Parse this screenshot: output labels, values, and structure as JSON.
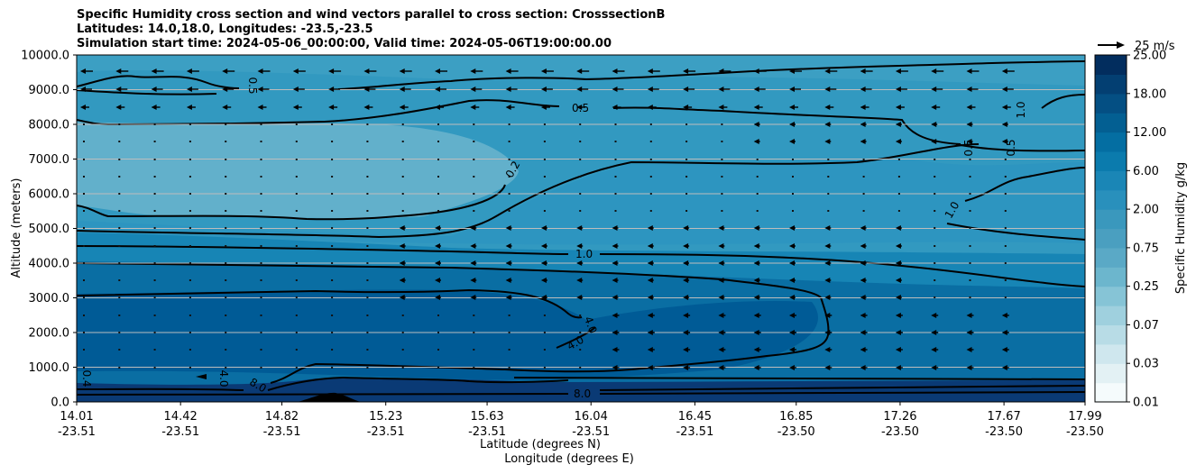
{
  "chart_data": {
    "type": "contourf",
    "title_lines": [
      "Specific Humidity cross section and wind vectors parallel to cross section: CrosssectionB",
      "Latitudes: 14.0,18.0, Longitudes: -23.5,-23.5",
      "Simulation start time: 2024-05-06_00:00:00, Valid time: 2024-05-06T19:00:00.00"
    ],
    "ylabel": "Altitude (meters)",
    "xlabel_lat": "Latitude (degrees N)",
    "xlabel_lon": "Longitude (degrees E)",
    "ylim": [
      0,
      10000
    ],
    "yticks": [
      "0.0",
      "1000.0",
      "2000.0",
      "3000.0",
      "4000.0",
      "5000.0",
      "6000.0",
      "7000.0",
      "8000.0",
      "9000.0",
      "10000.0"
    ],
    "xticks_lat": [
      "14.01",
      "14.42",
      "14.82",
      "15.23",
      "15.63",
      "16.04",
      "16.45",
      "16.85",
      "17.26",
      "17.67",
      "17.99"
    ],
    "xticks_lon": [
      "-23.51",
      "-23.51",
      "-23.51",
      "-23.51",
      "-23.51",
      "-23.51",
      "-23.51",
      "-23.50",
      "-23.50",
      "-23.50",
      "-23.50"
    ],
    "colorbar": {
      "label": "Specific Humidity g/kg",
      "ticks": [
        "0.01",
        "0.03",
        "0.07",
        "0.25",
        "0.75",
        "2.00",
        "6.00",
        "12.00",
        "18.00",
        "25.00"
      ],
      "levels": [
        0.01,
        0.02,
        0.03,
        0.05,
        0.07,
        0.1,
        0.25,
        0.5,
        0.75,
        1.0,
        2.0,
        4.0,
        6.0,
        8.0,
        12.0,
        15.0,
        18.0,
        20.0,
        25.0
      ],
      "colors": [
        "#f5fbfc",
        "#e3f1f4",
        "#cfe7ee",
        "#b8dce6",
        "#9fd0de",
        "#86c4d6",
        "#6cb6cd",
        "#5aa9c6",
        "#4a9fc0",
        "#3a98bd",
        "#2990bc",
        "#1a86b6",
        "#0b7bad",
        "#046ea2",
        "#035f92",
        "#044f83",
        "#033f72",
        "#022d5e"
      ]
    },
    "quiver_key": "25 m/s",
    "contour_labels": [
      "0.5",
      "0.5",
      "1.0",
      "0.5",
      "0.5",
      "0.2",
      "1.0",
      "1.0",
      "4.0",
      "4.0",
      "0.4",
      "4.0",
      "8.0",
      "8.0"
    ],
    "bands": [
      {
        "level": "8.0-25.0",
        "color": "#0a3a75"
      },
      {
        "level": "4.0-8.0",
        "color": "#005b96"
      },
      {
        "level": "2.0-4.0",
        "color": "#0a6ea3"
      },
      {
        "level": "1.0-2.0",
        "color": "#1785b5"
      },
      {
        "level": "0.5-1.0",
        "color": "#3299c0"
      },
      {
        "level": "0.25-0.5",
        "color": "#4aa6c6"
      },
      {
        "level": "0.1-0.25",
        "color": "#62b0cb"
      }
    ]
  }
}
